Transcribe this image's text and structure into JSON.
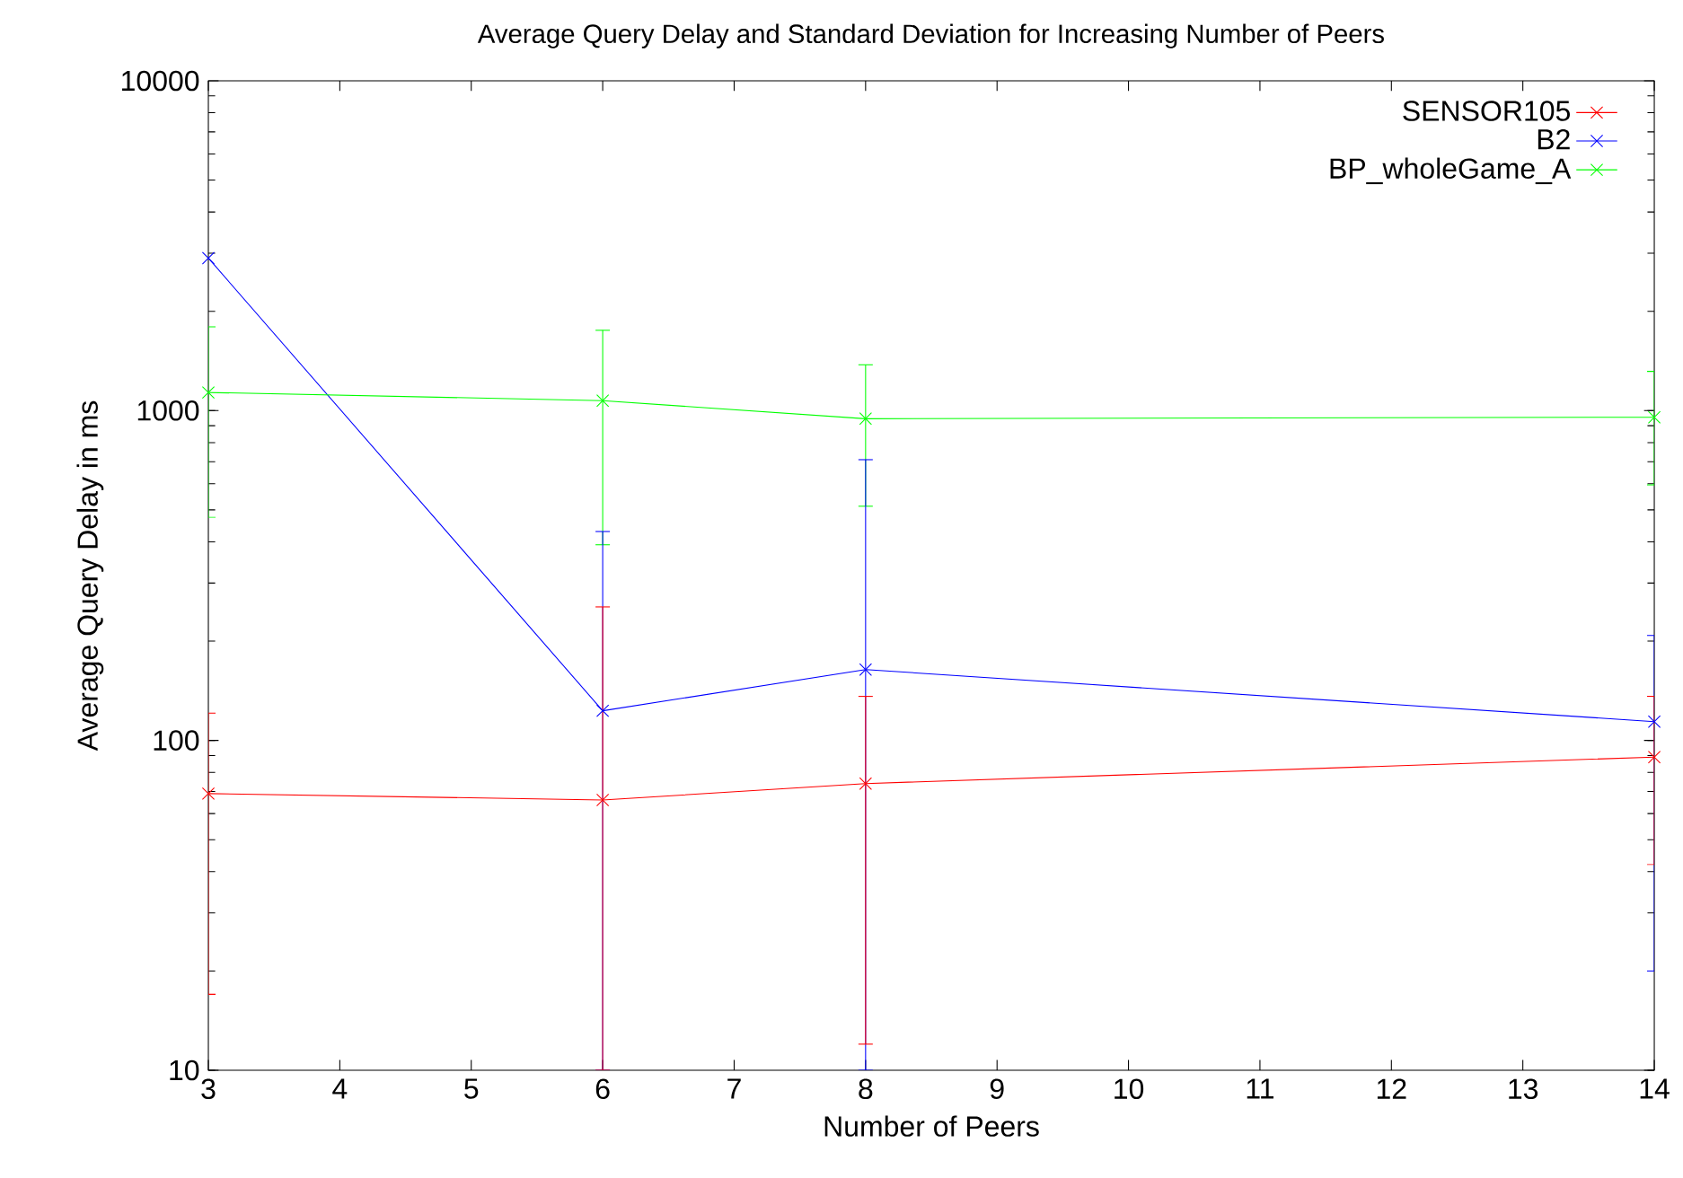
{
  "chart_data": {
    "type": "line",
    "title": "Average Query Delay and Standard Deviation for Increasing Number of Peers",
    "xlabel": "Number of Peers",
    "ylabel": "Average Query Delay in ms",
    "x": [
      3,
      6,
      8,
      14
    ],
    "series": [
      {
        "name": "SENSOR105",
        "color": "#ff0000",
        "marker": "cross",
        "values": [
          69,
          66,
          74,
          89
        ],
        "errors": [
          52,
          [
            10,
            254
          ],
          62,
          47
        ]
      },
      {
        "name": "B2",
        "color": "#0000ff",
        "marker": "cross",
        "values": [
          2900,
          123,
          164,
          114
        ],
        "errors": [
          null,
          [
            10,
            430
          ],
          [
            10,
            710
          ],
          94
        ]
      },
      {
        "name": "BP_wholeGame_A",
        "color": "#00ff00",
        "marker": "cross",
        "values": [
          1135,
          1072,
          945,
          955
        ],
        "errors": [
          660,
          680,
          432,
          360
        ]
      }
    ],
    "xlim": [
      3,
      14
    ],
    "xticks": [
      3,
      4,
      5,
      6,
      7,
      8,
      9,
      10,
      11,
      12,
      13,
      14
    ],
    "ylim": [
      10,
      10000
    ],
    "yticks": [
      10,
      100,
      1000,
      10000
    ],
    "log": "y",
    "grid": false,
    "legend": "top right",
    "line_style": "solid"
  }
}
